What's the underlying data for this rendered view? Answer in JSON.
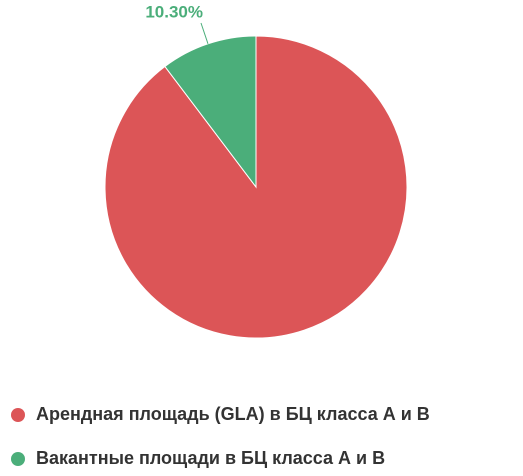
{
  "chart_data": {
    "type": "pie",
    "categories": [
      "Арендная площадь (GLA) в БЦ класса А и В",
      "Вакантные площади в БЦ класса А и В"
    ],
    "values": [
      89.7,
      10.3
    ],
    "value_labels": [
      null,
      "10.30%"
    ],
    "colors": [
      "#dc5557",
      "#4bae7a"
    ],
    "legend": "bottom"
  }
}
